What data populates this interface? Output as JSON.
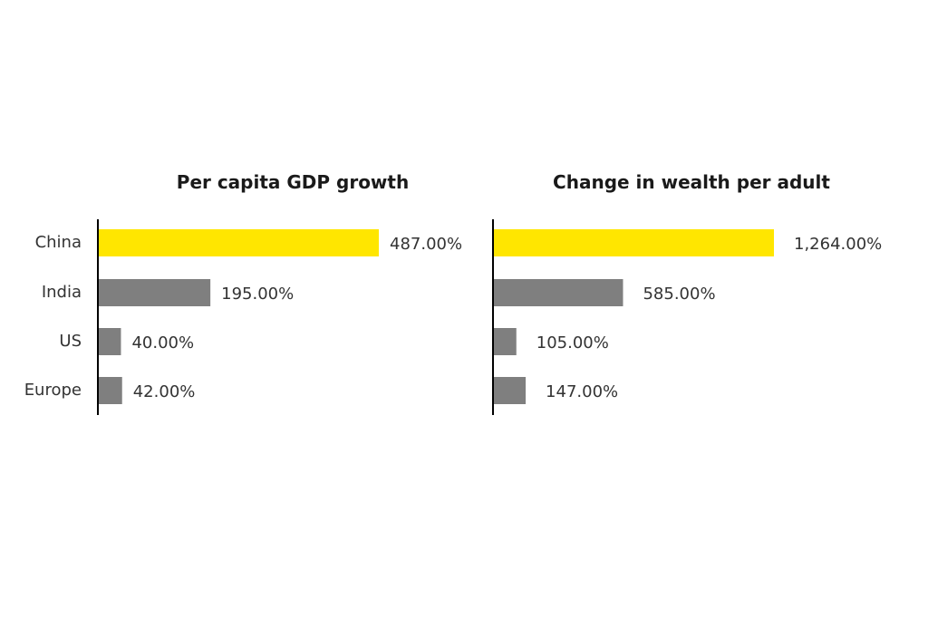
{
  "colors": {
    "highlight": "#FFE600",
    "bar": "#7F7F7F"
  },
  "chart_data": [
    {
      "type": "bar",
      "orientation": "horizontal",
      "title": "Per capita GDP growth",
      "categories": [
        "China",
        "India",
        "US",
        "Europe"
      ],
      "values": [
        487,
        195,
        40,
        42
      ],
      "value_labels": [
        "487.00%",
        "195.00%",
        "40.00%",
        "42.00%"
      ],
      "highlight_index": 0,
      "grid": false,
      "legend": "none"
    },
    {
      "type": "bar",
      "orientation": "horizontal",
      "title": "Change in wealth per adult",
      "categories": [
        "China",
        "India",
        "US",
        "Europe"
      ],
      "values": [
        1264,
        585,
        105,
        147
      ],
      "value_labels": [
        "1,264.00%",
        "585.00%",
        "105.00%",
        "147.00%"
      ],
      "highlight_index": 0,
      "grid": false,
      "legend": "none"
    }
  ]
}
